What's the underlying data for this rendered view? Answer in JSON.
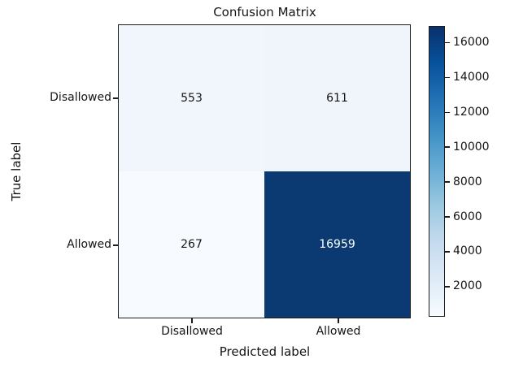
{
  "chart_data": {
    "type": "heatmap",
    "title": "Confusion Matrix",
    "xlabel": "Predicted label",
    "ylabel": "True label",
    "x_tick_labels": [
      "Disallowed",
      "Allowed"
    ],
    "y_tick_labels": [
      "Disallowed",
      "Allowed"
    ],
    "matrix": [
      [
        553,
        611
      ],
      [
        267,
        16959
      ]
    ],
    "cells": [
      {
        "true_label": "Disallowed",
        "predicted_label": "Disallowed",
        "value": "553",
        "bg": "#f1f6fc",
        "text_color": "#151515"
      },
      {
        "true_label": "Disallowed",
        "predicted_label": "Allowed",
        "value": "611",
        "bg": "#f0f5fb",
        "text_color": "#151515"
      },
      {
        "true_label": "Allowed",
        "predicted_label": "Disallowed",
        "value": "267",
        "bg": "#f7faff",
        "text_color": "#151515"
      },
      {
        "true_label": "Allowed",
        "predicted_label": "Allowed",
        "value": "16959",
        "bg": "#0b3a73",
        "text_color": "#ffffff"
      }
    ],
    "colormap": "Blues",
    "colorbar": {
      "vmin": 267,
      "vmax": 16959,
      "ticks": [
        2000,
        4000,
        6000,
        8000,
        10000,
        12000,
        14000,
        16000
      ],
      "gradient_stops": [
        "#f7fbff",
        "#deebf7",
        "#c6dbef",
        "#9ecae1",
        "#6baed6",
        "#4292c6",
        "#2171b5",
        "#08519c",
        "#08306b"
      ]
    },
    "legend_position": "right-colorbar",
    "grid": false
  }
}
